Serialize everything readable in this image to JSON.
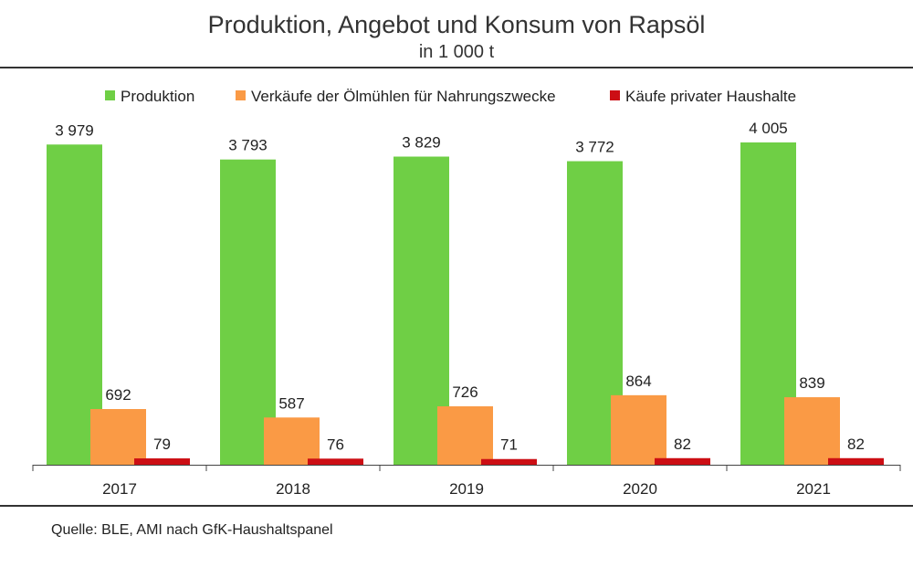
{
  "header": {
    "title": "Produktion, Angebot und Konsum von Rapsöl",
    "subtitle": "in 1 000 t"
  },
  "footer": {
    "source": "Quelle: BLE, AMI nach GfK-Haushaltspanel"
  },
  "chart_data": {
    "type": "bar",
    "title": "Produktion, Angebot und Konsum von Rapsöl",
    "subtitle": "in 1 000 t",
    "categories": [
      "2017",
      "2018",
      "2019",
      "2020",
      "2021"
    ],
    "series": [
      {
        "name": "Produktion",
        "color": "#6fcf45",
        "values": [
          3979,
          3793,
          3829,
          3772,
          4005
        ],
        "labels": [
          "3 979",
          "3 793",
          "3 829",
          "3 772",
          "4 005"
        ]
      },
      {
        "name": "Verkäufe der Ölmühlen für Nahrungszwecke",
        "color": "#fa9a45",
        "values": [
          692,
          587,
          726,
          864,
          839
        ],
        "labels": [
          "692",
          "587",
          "726",
          "864",
          "839"
        ]
      },
      {
        "name": "Käufe privater Haushalte",
        "color": "#cc0e14",
        "values": [
          79,
          76,
          71,
          82,
          82
        ],
        "labels": [
          "79",
          "76",
          "71",
          "82",
          "82"
        ]
      }
    ],
    "ylim": [
      0,
      4005
    ],
    "grid": false,
    "legend_position": "top"
  }
}
